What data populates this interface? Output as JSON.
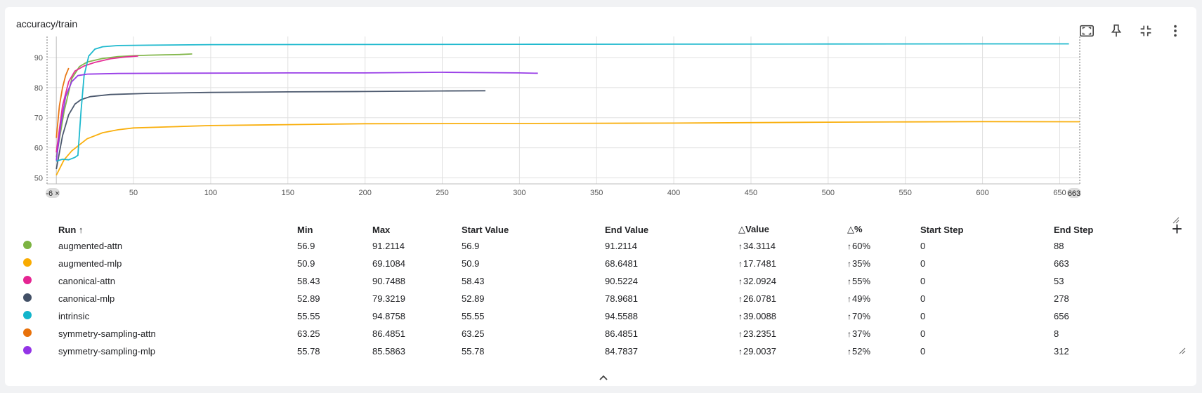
{
  "card": {
    "title": "accuracy/train"
  },
  "toolbar": {
    "buttons": [
      {
        "name": "fit-domain-button",
        "icon": "fit-screen-icon"
      },
      {
        "name": "pin-button",
        "icon": "pin-icon"
      },
      {
        "name": "collapse-button",
        "icon": "collapse-icon"
      },
      {
        "name": "more-button",
        "icon": "more-vert-icon"
      }
    ]
  },
  "chart_data": {
    "type": "line",
    "title": "accuracy/train",
    "xlabel": "",
    "ylabel": "",
    "xlim": [
      -6,
      663
    ],
    "ylim": [
      48,
      97
    ],
    "x_ticks": [
      50,
      100,
      150,
      200,
      250,
      300,
      350,
      400,
      450,
      500,
      550,
      600,
      650
    ],
    "y_ticks": [
      50,
      60,
      70,
      80,
      90
    ],
    "x_range_labels": {
      "min": "-6",
      "max": "663"
    },
    "grid": true,
    "legend_placement": "table-below",
    "series": [
      {
        "name": "augmented-attn",
        "color": "#7cb342",
        "points": [
          [
            0,
            56.9
          ],
          [
            5,
            72
          ],
          [
            10,
            83
          ],
          [
            15,
            87
          ],
          [
            20,
            88.5
          ],
          [
            30,
            89.7
          ],
          [
            40,
            90.3
          ],
          [
            50,
            90.6
          ],
          [
            60,
            90.8
          ],
          [
            70,
            90.9
          ],
          [
            80,
            91.0
          ],
          [
            88,
            91.2
          ]
        ]
      },
      {
        "name": "augmented-mlp",
        "color": "#f9ab00",
        "points": [
          [
            0,
            50.9
          ],
          [
            5,
            56
          ],
          [
            10,
            59
          ],
          [
            20,
            63
          ],
          [
            30,
            65
          ],
          [
            40,
            66
          ],
          [
            50,
            66.6
          ],
          [
            75,
            67
          ],
          [
            100,
            67.4
          ],
          [
            150,
            67.7
          ],
          [
            200,
            68
          ],
          [
            300,
            68.1
          ],
          [
            400,
            68.2
          ],
          [
            500,
            68.5
          ],
          [
            550,
            68.6
          ],
          [
            600,
            68.7
          ],
          [
            663,
            68.65
          ]
        ]
      },
      {
        "name": "canonical-attn",
        "color": "#e52592",
        "points": [
          [
            0,
            58.43
          ],
          [
            4,
            74
          ],
          [
            8,
            82
          ],
          [
            12,
            85.5
          ],
          [
            18,
            87.2
          ],
          [
            25,
            88.4
          ],
          [
            35,
            89.6
          ],
          [
            45,
            90.2
          ],
          [
            53,
            90.52
          ]
        ]
      },
      {
        "name": "canonical-mlp",
        "color": "#425066",
        "points": [
          [
            0,
            52.89
          ],
          [
            4,
            64
          ],
          [
            8,
            71
          ],
          [
            12,
            74.5
          ],
          [
            16,
            76
          ],
          [
            22,
            77
          ],
          [
            35,
            77.7
          ],
          [
            60,
            78.1
          ],
          [
            100,
            78.4
          ],
          [
            150,
            78.6
          ],
          [
            200,
            78.7
          ],
          [
            250,
            78.9
          ],
          [
            278,
            78.97
          ]
        ]
      },
      {
        "name": "intrinsic",
        "color": "#12b5cb",
        "points": [
          [
            0,
            55.55
          ],
          [
            4,
            56.2
          ],
          [
            8,
            56
          ],
          [
            12,
            56.8
          ],
          [
            14,
            57.5
          ],
          [
            16,
            72
          ],
          [
            18,
            84
          ],
          [
            21,
            90.5
          ],
          [
            25,
            92.8
          ],
          [
            30,
            93.6
          ],
          [
            40,
            94
          ],
          [
            60,
            94.1
          ],
          [
            100,
            94.3
          ],
          [
            200,
            94.35
          ],
          [
            300,
            94.4
          ],
          [
            400,
            94.45
          ],
          [
            500,
            94.5
          ],
          [
            600,
            94.55
          ],
          [
            656,
            94.56
          ]
        ]
      },
      {
        "name": "symmetry-sampling-attn",
        "color": "#e8710a",
        "points": [
          [
            0,
            63.25
          ],
          [
            2,
            74
          ],
          [
            4,
            80
          ],
          [
            6,
            84
          ],
          [
            8,
            86.49
          ]
        ]
      },
      {
        "name": "symmetry-sampling-mlp",
        "color": "#9334e6",
        "points": [
          [
            0,
            55.78
          ],
          [
            3,
            68
          ],
          [
            6,
            77
          ],
          [
            10,
            82
          ],
          [
            14,
            84
          ],
          [
            20,
            84.5
          ],
          [
            40,
            84.7
          ],
          [
            80,
            84.8
          ],
          [
            150,
            84.9
          ],
          [
            200,
            84.9
          ],
          [
            250,
            85.1
          ],
          [
            300,
            84.9
          ],
          [
            312,
            84.78
          ]
        ]
      }
    ]
  },
  "table": {
    "headers": [
      "Run ↑",
      "Min",
      "Max",
      "Start Value",
      "End Value",
      "Value",
      "%",
      "Start Step",
      "End Step"
    ],
    "rows": [
      {
        "run": "augmented-attn",
        "color": "#7cb342",
        "min": "56.9",
        "max": "91.2114",
        "start_value": "56.9",
        "end_value": "91.2114",
        "delta_value": "34.3114",
        "delta_pct": "60%",
        "start_step": "0",
        "end_step": "88"
      },
      {
        "run": "augmented-mlp",
        "color": "#f9ab00",
        "min": "50.9",
        "max": "69.1084",
        "start_value": "50.9",
        "end_value": "68.6481",
        "delta_value": "17.7481",
        "delta_pct": "35%",
        "start_step": "0",
        "end_step": "663"
      },
      {
        "run": "canonical-attn",
        "color": "#e52592",
        "min": "58.43",
        "max": "90.7488",
        "start_value": "58.43",
        "end_value": "90.5224",
        "delta_value": "32.0924",
        "delta_pct": "55%",
        "start_step": "0",
        "end_step": "53"
      },
      {
        "run": "canonical-mlp",
        "color": "#425066",
        "min": "52.89",
        "max": "79.3219",
        "start_value": "52.89",
        "end_value": "78.9681",
        "delta_value": "26.0781",
        "delta_pct": "49%",
        "start_step": "0",
        "end_step": "278"
      },
      {
        "run": "intrinsic",
        "color": "#12b5cb",
        "min": "55.55",
        "max": "94.8758",
        "start_value": "55.55",
        "end_value": "94.5588",
        "delta_value": "39.0088",
        "delta_pct": "70%",
        "start_step": "0",
        "end_step": "656"
      },
      {
        "run": "symmetry-sampling-attn",
        "color": "#e8710a",
        "min": "63.25",
        "max": "86.4851",
        "start_value": "63.25",
        "end_value": "86.4851",
        "delta_value": "23.2351",
        "delta_pct": "37%",
        "start_step": "0",
        "end_step": "8"
      },
      {
        "run": "symmetry-sampling-mlp",
        "color": "#9334e6",
        "min": "55.78",
        "max": "85.5863",
        "start_value": "55.78",
        "end_value": "84.7837",
        "delta_value": "29.0037",
        "delta_pct": "52%",
        "start_step": "0",
        "end_step": "312"
      }
    ]
  }
}
